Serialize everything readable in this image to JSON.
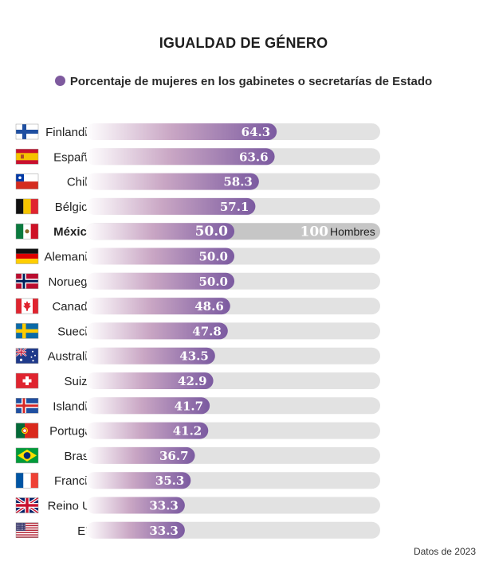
{
  "chart_data": {
    "type": "bar",
    "orientation": "horizontal",
    "title": "IGUALDAD DE GÉNERO",
    "legend": [
      {
        "name": "Porcentaje de mujeres en los gabinetes o secretarías de Estado",
        "color": "#7e5a9e"
      }
    ],
    "legend_position": "top-center",
    "xlim": [
      0,
      100
    ],
    "grid": false,
    "categories": [
      "Finlandia",
      "España",
      "Chile",
      "Bélgica",
      "México",
      "Alemania",
      "Noruega",
      "Canadá",
      "Suecia",
      "Australia",
      "Suiza",
      "Islandia",
      "Portugal",
      "Brasil",
      "Francia",
      "Reino U.",
      "EU"
    ],
    "values": [
      64.3,
      63.6,
      58.3,
      57.1,
      50.0,
      50.0,
      50.0,
      48.6,
      47.8,
      43.5,
      42.9,
      41.7,
      41.2,
      36.7,
      35.3,
      33.3,
      33.3
    ],
    "value_labels": [
      "64.3",
      "63.6",
      "58.3",
      "57.1",
      "50.0",
      "50.0",
      "50.0",
      "48.6",
      "47.8",
      "43.5",
      "42.9",
      "41.7",
      "41.2",
      "36.7",
      "35.3",
      "33.3",
      "33.3"
    ],
    "highlight": {
      "category": "México",
      "men_total": 100,
      "men_total_label": "100",
      "men_label": "Hombres"
    },
    "flags": [
      "finland-flag-icon",
      "spain-flag-icon",
      "chile-flag-icon",
      "belgium-flag-icon",
      "mexico-flag-icon",
      "germany-flag-icon",
      "norway-flag-icon",
      "canada-flag-icon",
      "sweden-flag-icon",
      "australia-flag-icon",
      "switzerland-flag-icon",
      "iceland-flag-icon",
      "portugal-flag-icon",
      "brazil-flag-icon",
      "france-flag-icon",
      "uk-flag-icon",
      "usa-flag-icon"
    ],
    "colors": {
      "bar_start": "#ffffff",
      "bar_mid": "#c9a6c4",
      "bar_end": "#7b5aa0",
      "track": "#e2e2e2",
      "men_track": "#c6c6c6"
    }
  },
  "source": "Datos de 2023"
}
